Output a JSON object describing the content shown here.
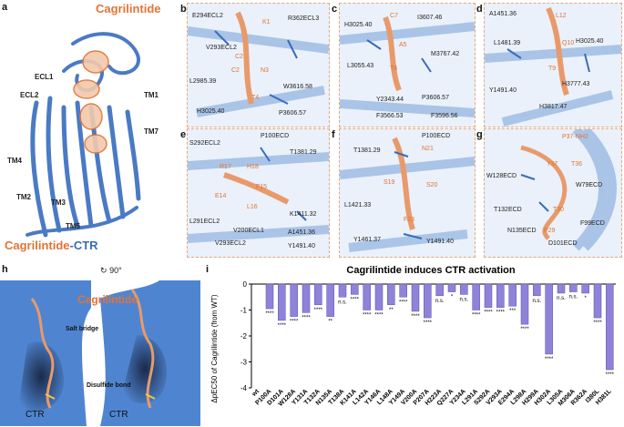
{
  "panels": {
    "a": {
      "letter": "a",
      "ligand": "Cagrilintide",
      "complex_ligand": "Cagrilintide",
      "complex_receptor": "-CTR",
      "tm_labels": [
        "ECL1",
        "ECL2",
        "TM1",
        "TM7",
        "TM4",
        "TM2",
        "TM3",
        "TM5"
      ]
    },
    "b": {
      "letter": "b",
      "labels": [
        "E294ECL2",
        "V293ECL2",
        "L2985.39",
        "H3025.40",
        "R362ECL3",
        "W3616.58",
        "P3606.57"
      ],
      "ligand_labels": [
        "K1",
        "C2",
        "N3",
        "T4",
        "C2"
      ]
    },
    "c": {
      "letter": "c",
      "labels": [
        "H3025.40",
        "I3607.46",
        "M3767.42",
        "L3055.43",
        "Y2343.44",
        "P3606.57",
        "F3566.53",
        "F3596.56"
      ],
      "ligand_labels": [
        "C7",
        "A5",
        "T6"
      ]
    },
    "d": {
      "letter": "d",
      "labels": [
        "A1451.36",
        "L1481.39",
        "H3025.40",
        "H3777.43",
        "Y1491.40",
        "H3817.47"
      ],
      "ligand_labels": [
        "L12",
        "Q10",
        "T9"
      ]
    },
    "e": {
      "letter": "e",
      "labels": [
        "P100ECD",
        "S292ECL2",
        "T1381.29",
        "K1411.32",
        "L291ECL2",
        "V200ECL1",
        "V293ECL2",
        "A1451.36",
        "Y1491.40"
      ],
      "ligand_labels": [
        "R17",
        "H18",
        "E14",
        "F15",
        "L16"
      ]
    },
    "f": {
      "letter": "f",
      "labels": [
        "P100ECD",
        "T1381.29",
        "L1421.33",
        "Y1461.37",
        "Y1491.40"
      ],
      "ligand_labels": [
        "N21",
        "S19",
        "S20",
        "F23"
      ]
    },
    "g": {
      "letter": "g",
      "labels": [
        "W128ECD",
        "T132ECD",
        "W79ECD",
        "N135ECD",
        "F99ECD",
        "D101ECD"
      ],
      "ligand_labels": [
        "P37-NH2",
        "Y37",
        "T36",
        "T30",
        "P29"
      ]
    },
    "h": {
      "letter": "h",
      "rotation": "90°",
      "ligand": "Cagrilintide",
      "salt_bridge": "Salt bridge",
      "disulfide": "Disulfide bond",
      "ctr1": "CTR",
      "ctr2": "CTR"
    },
    "i": {
      "letter": "i"
    }
  },
  "chart_data": {
    "type": "bar",
    "title": "Cagrilintide induces CTR activation",
    "ylabel": "ΔpEC50 of Cagrilintide (from WT)",
    "ylim": [
      -4,
      0
    ],
    "yticks": [
      0,
      -1,
      -2,
      -3,
      -4
    ],
    "categories": [
      "wt",
      "P100A",
      "D101A",
      "W128A",
      "Y131A",
      "T132A",
      "N135A",
      "T138A",
      "K141A",
      "L142A",
      "Y146A",
      "L148A",
      "Y149A",
      "V200A",
      "P207A",
      "H223A",
      "Q227A",
      "Y234A",
      "L291A",
      "S292A",
      "V293A",
      "E294A",
      "L298A",
      "H299A",
      "H302A",
      "L305A",
      "M306A",
      "R362A",
      "I380L",
      "H381L"
    ],
    "values": [
      0,
      -0.95,
      -1.4,
      -1.25,
      -1.1,
      -0.8,
      -1.25,
      -0.5,
      -0.4,
      -1.0,
      -1.0,
      -0.8,
      -0.5,
      -1.05,
      -1.3,
      -0.45,
      -0.3,
      -0.4,
      -1.0,
      -0.9,
      -0.9,
      -0.85,
      -1.55,
      -0.45,
      -2.7,
      -0.35,
      -0.3,
      -0.35,
      -1.3,
      -3.3
    ],
    "significance": [
      "",
      "****",
      "****",
      "****",
      "****",
      "****",
      "**",
      "n.s.",
      "****",
      "****",
      "****",
      "**",
      "****",
      "****",
      "****",
      "n.s.",
      "*",
      "n.s.",
      "****",
      "****",
      "****",
      "***",
      "****",
      "n.s.",
      "****",
      "n.s.",
      "n.s.",
      "*",
      "****",
      "****"
    ],
    "grid": false,
    "bar_color": "#8f82d9"
  }
}
